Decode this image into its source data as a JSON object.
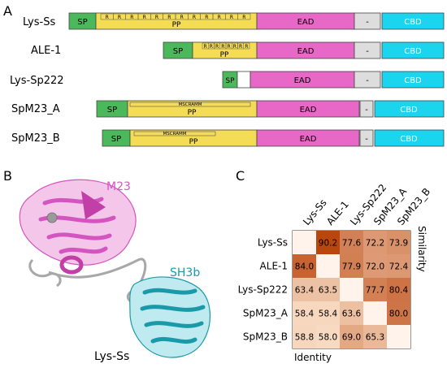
{
  "panels": {
    "a": "A",
    "b": "B",
    "c": "C"
  },
  "colors": {
    "sp": "#4cb85c",
    "pp": "#f5dc55",
    "ead": "#e868c8",
    "cbd": "#1bd4ee",
    "linker": "#dddddd"
  },
  "domain_map": {
    "rows": [
      {
        "name": "Lys-Ss",
        "labels": {
          "sp": "SP",
          "pp": "PP",
          "ead": "EAD",
          "linker": "-",
          "cbd": "CBD"
        },
        "repeat_glyph": "R",
        "repeat_count": 12
      },
      {
        "name": "ALE-1",
        "labels": {
          "sp": "SP",
          "pp": "PP",
          "ead": "EAD",
          "linker": "-",
          "cbd": "CBD"
        },
        "repeat_glyph": "R",
        "repeat_count": 8
      },
      {
        "name": "Lys-Sp222",
        "labels": {
          "sp": "SP",
          "ead": "EAD",
          "linker": "-",
          "cbd": "CBD"
        }
      },
      {
        "name": "SpM23_A",
        "labels": {
          "sp": "SP",
          "pp": "PP",
          "ead": "EAD",
          "linker": "-",
          "cbd": "CBD"
        },
        "motif": "MSCRAMM"
      },
      {
        "name": "SpM23_B",
        "labels": {
          "sp": "SP",
          "pp": "PP",
          "ead": "EAD",
          "linker": "-",
          "cbd": "CBD"
        },
        "motif": "MSCRAMM"
      }
    ]
  },
  "structure": {
    "m23_label": "M23",
    "sh3b_label": "SH3b",
    "protein_label": "Lys-Ss",
    "m23_color": "#d555c0",
    "sh3b_color": "#1a9aa8",
    "linker_color": "#a8a8a8"
  },
  "chart_data": {
    "type": "heatmap",
    "columns": [
      "Lys-Ss",
      "ALE-1",
      "Lys-Sp222",
      "SpM23_A",
      "SpM23_B"
    ],
    "rows": [
      "Lys-Ss",
      "ALE-1",
      "Lys-Sp222",
      "SpM23_A",
      "SpM23_B"
    ],
    "values": [
      [
        null,
        90.2,
        77.6,
        72.2,
        73.9
      ],
      [
        84.0,
        null,
        77.9,
        72.0,
        72.4
      ],
      [
        63.4,
        63.5,
        null,
        77.7,
        80.4
      ],
      [
        58.4,
        58.4,
        63.6,
        null,
        80.0
      ],
      [
        58.8,
        58.0,
        69.0,
        65.3,
        null
      ]
    ],
    "upper_label": "Similarity",
    "lower_label": "Identity"
  }
}
